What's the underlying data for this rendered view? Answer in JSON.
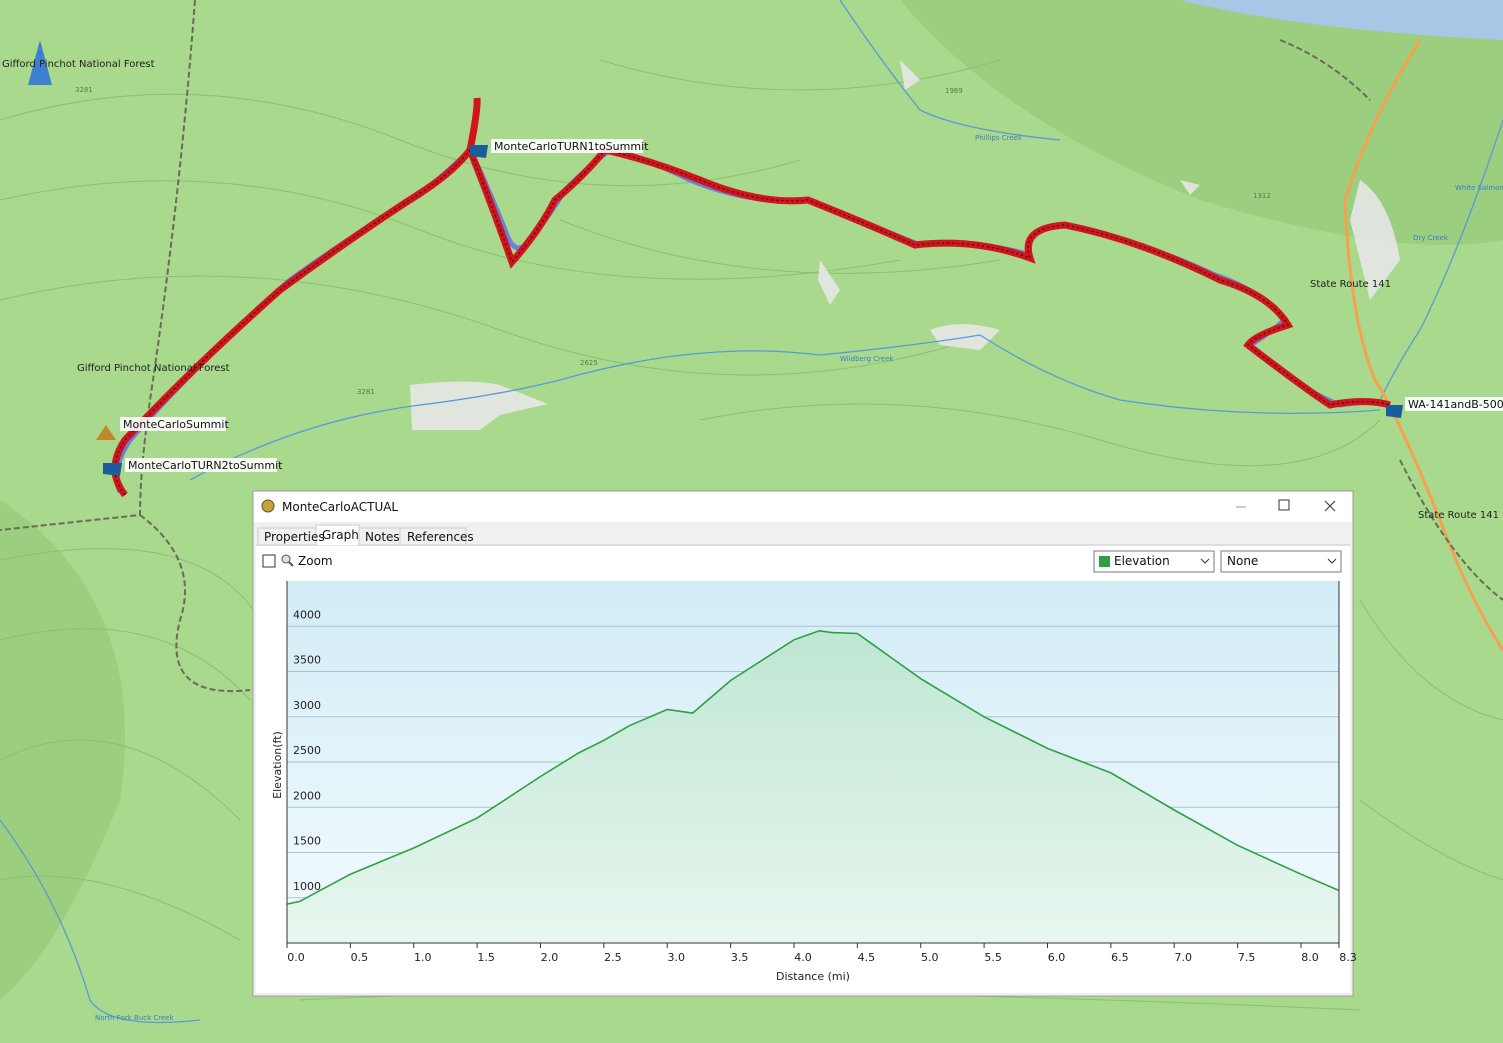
{
  "map": {
    "labels": [
      "Gifford Pinchot National Forest",
      "Gifford Pinchot National Forest",
      "MonteCarloTURN1toSummit",
      "MonteCarloSummit",
      "MonteCarloTURN2toSummit",
      "WA-141andB-5000",
      "State Route 141",
      "State Route 141",
      "3281",
      "3281",
      "2625",
      "1969",
      "1312",
      "Phillips Creek",
      "Dry Creek",
      "White Salmon Ri",
      "Wildberg Creek",
      "North Fork Buck Creek"
    ]
  },
  "window": {
    "title": "MonteCarloACTUAL",
    "tabs": [
      "Properties",
      "Graph",
      "Notes",
      "References"
    ],
    "zoom_label": "Zoom",
    "second_dropdown": "None"
  },
  "chart_data": {
    "type": "line",
    "x_label": "Distance  (mi)",
    "y_label": "Elevation(ft)",
    "x": [
      0,
      0.1,
      0.5,
      1.0,
      1.5,
      2.0,
      2.3,
      2.5,
      2.7,
      3.0,
      3.2,
      3.5,
      4.0,
      4.2,
      4.3,
      4.5,
      5.0,
      5.5,
      6.0,
      6.5,
      7.0,
      7.5,
      8.0,
      8.3
    ],
    "series": [
      {
        "name": "Elevation",
        "color": "#2ea043",
        "values": [
          930,
          960,
          1260,
          1550,
          1880,
          2340,
          2600,
          2740,
          2900,
          3080,
          3040,
          3400,
          3850,
          3950,
          3930,
          3920,
          3420,
          3000,
          2650,
          2380,
          1970,
          1580,
          1260,
          1080
        ]
      }
    ],
    "xlim": [
      0,
      8.3
    ],
    "ylim": [
      500,
      4500
    ],
    "xticks": [
      {
        "value": 0,
        "label": "0.0"
      },
      0.5,
      {
        "value": 1,
        "label": "1.0"
      },
      1.5,
      {
        "value": 2,
        "label": "2.0"
      },
      2.5,
      {
        "value": 3,
        "label": "3.0"
      },
      3.5,
      {
        "value": 4,
        "label": "4.0"
      },
      4.5,
      {
        "value": 5,
        "label": "5.0"
      },
      5.5,
      {
        "value": 6,
        "label": "6.0"
      },
      6.5,
      {
        "value": 7,
        "label": "7.0"
      },
      7.5,
      {
        "value": 8,
        "label": "8.0"
      },
      8.3
    ],
    "yticks": [
      1000,
      1500,
      2000,
      2500,
      3000,
      3500,
      4000
    ],
    "grid": true
  }
}
